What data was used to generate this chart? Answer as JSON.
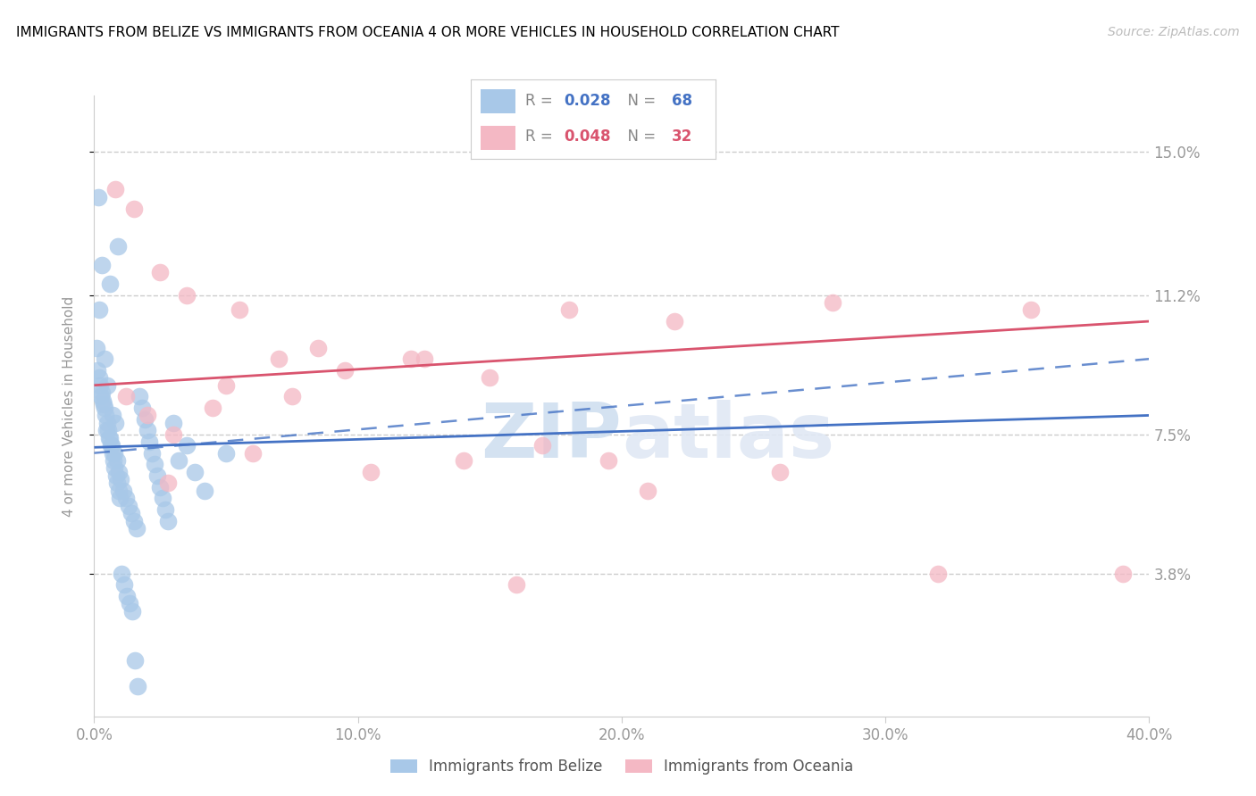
{
  "title": "IMMIGRANTS FROM BELIZE VS IMMIGRANTS FROM OCEANIA 4 OR MORE VEHICLES IN HOUSEHOLD CORRELATION CHART",
  "source": "Source: ZipAtlas.com",
  "ylabel": "4 or more Vehicles in Household",
  "xlim": [
    0.0,
    40.0
  ],
  "ylim": [
    0.0,
    16.5
  ],
  "yticks": [
    3.8,
    7.5,
    11.2,
    15.0
  ],
  "xticks": [
    0.0,
    10.0,
    20.0,
    30.0,
    40.0
  ],
  "xtick_labels": [
    "0.0%",
    "10.0%",
    "20.0%",
    "30.0%",
    "40.0%"
  ],
  "ytick_labels": [
    "3.8%",
    "7.5%",
    "11.2%",
    "15.0%"
  ],
  "belize_color": "#a8c8e8",
  "belize_line_color": "#4472c4",
  "oceania_color": "#f4b8c4",
  "oceania_line_color": "#d9546e",
  "R_belize": 0.028,
  "N_belize": 68,
  "R_oceania": 0.048,
  "N_oceania": 32,
  "watermark": "ZIPatlas",
  "belize_x": [
    0.15,
    0.9,
    0.3,
    0.6,
    0.2,
    0.1,
    0.4,
    0.5,
    0.25,
    0.35,
    0.7,
    0.8,
    0.45,
    0.55,
    0.65,
    0.75,
    0.85,
    0.95,
    1.0,
    1.1,
    1.2,
    1.3,
    1.4,
    1.5,
    1.6,
    1.7,
    1.8,
    1.9,
    2.0,
    2.1,
    2.2,
    2.3,
    2.4,
    2.5,
    2.6,
    2.7,
    2.8,
    3.0,
    3.2,
    3.5,
    3.8,
    4.2,
    5.0,
    0.12,
    0.18,
    0.22,
    0.28,
    0.32,
    0.38,
    0.42,
    0.48,
    0.52,
    0.58,
    0.62,
    0.68,
    0.72,
    0.78,
    0.82,
    0.88,
    0.92,
    0.98,
    1.05,
    1.15,
    1.25,
    1.35,
    1.45,
    1.55,
    1.65
  ],
  "belize_y": [
    13.8,
    12.5,
    12.0,
    11.5,
    10.8,
    9.8,
    9.5,
    8.8,
    8.5,
    8.3,
    8.0,
    7.8,
    7.6,
    7.4,
    7.2,
    7.0,
    6.8,
    6.5,
    6.3,
    6.0,
    5.8,
    5.6,
    5.4,
    5.2,
    5.0,
    8.5,
    8.2,
    7.9,
    7.6,
    7.3,
    7.0,
    6.7,
    6.4,
    6.1,
    5.8,
    5.5,
    5.2,
    7.8,
    6.8,
    7.2,
    6.5,
    6.0,
    7.0,
    9.2,
    9.0,
    8.8,
    8.6,
    8.4,
    8.2,
    8.0,
    7.8,
    7.6,
    7.4,
    7.2,
    7.0,
    6.8,
    6.6,
    6.4,
    6.2,
    6.0,
    5.8,
    3.8,
    3.5,
    3.2,
    3.0,
    2.8,
    1.5,
    0.8
  ],
  "oceania_x": [
    0.8,
    1.5,
    2.5,
    3.5,
    5.5,
    7.0,
    9.5,
    12.0,
    15.0,
    18.0,
    22.0,
    28.0,
    35.5,
    1.2,
    2.0,
    3.0,
    5.0,
    7.5,
    10.5,
    14.0,
    17.0,
    21.0,
    26.0,
    32.0,
    2.8,
    8.5,
    12.5,
    19.5,
    6.0,
    4.5,
    16.0,
    39.0
  ],
  "oceania_y": [
    14.0,
    13.5,
    11.8,
    11.2,
    10.8,
    9.5,
    9.2,
    9.5,
    9.0,
    10.8,
    10.5,
    11.0,
    10.8,
    8.5,
    8.0,
    7.5,
    8.8,
    8.5,
    6.5,
    6.8,
    7.2,
    6.0,
    6.5,
    3.8,
    6.2,
    9.8,
    9.5,
    6.8,
    7.0,
    8.2,
    3.5,
    3.8
  ],
  "belize_solid_y0": 7.15,
  "belize_solid_y1": 8.0,
  "belize_dash_y0": 7.0,
  "belize_dash_y1": 9.5,
  "oceania_solid_y0": 8.8,
  "oceania_solid_y1": 10.5
}
